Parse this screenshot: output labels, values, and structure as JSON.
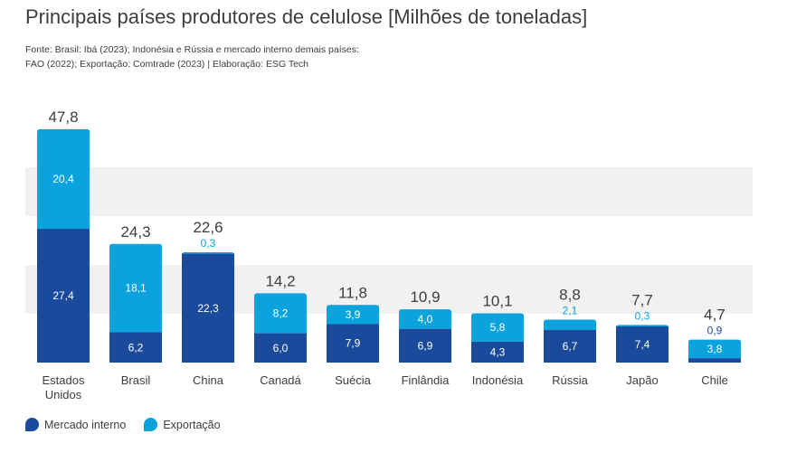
{
  "colors": {
    "domestic": "#1A4A9C",
    "export": "#0AA3DE",
    "band": "#F1F1F2",
    "text": "#3D3D3D",
    "exportLabel": "#0AA3DE"
  },
  "source_lines": [
    "Fonte: Brasil: Ibá (2023); Indonésia e Rússia e mercado interno demais países:",
    "FAO (2022); Exportação: Comtrade (2023) | Elaboração: ESG Tech"
  ],
  "chart_data": {
    "type": "bar",
    "stacked": true,
    "title": "Principais países produtores de celulose [Milhões de toneladas]",
    "categories": [
      "Estados Unidos",
      "Brasil",
      "China",
      "Canadá",
      "Suécia",
      "Finlândia",
      "Indonésia",
      "Rússia",
      "Japão",
      "Chile"
    ],
    "category_lines": [
      [
        "Estados",
        "Unidos"
      ],
      [
        "Brasil"
      ],
      [
        "China"
      ],
      [
        "Canadá"
      ],
      [
        "Suécia"
      ],
      [
        "Finlândia"
      ],
      [
        "Indonésia"
      ],
      [
        "Rússia"
      ],
      [
        "Japão"
      ],
      [
        "Chile"
      ]
    ],
    "series": [
      {
        "name": "Mercado interno",
        "values": [
          27.4,
          6.2,
          22.3,
          6.0,
          7.9,
          6.9,
          4.3,
          6.7,
          7.4,
          0.9
        ],
        "labels": [
          "27,4",
          "6,2",
          "22,3",
          "6,0",
          "7,9",
          "6,9",
          "4,3",
          "6,7",
          "7,4",
          "0,9"
        ]
      },
      {
        "name": "Exportação",
        "values": [
          20.4,
          18.1,
          0.3,
          8.2,
          3.9,
          4.0,
          5.8,
          2.1,
          0.3,
          3.8
        ],
        "labels": [
          "20,4",
          "18,1",
          "0,3",
          "8,2",
          "3,9",
          "4,0",
          "5,8",
          "2,1",
          "0,3",
          "3,8"
        ]
      }
    ],
    "totals": [
      "47,8",
      "24,3",
      "22,6",
      "14,2",
      "11,8",
      "10,9",
      "10,1",
      "8,8",
      "7,7",
      "4,7"
    ],
    "ylim": [
      0,
      50
    ],
    "grid": "alternating horizontal bands",
    "legend": "bottom-left"
  }
}
